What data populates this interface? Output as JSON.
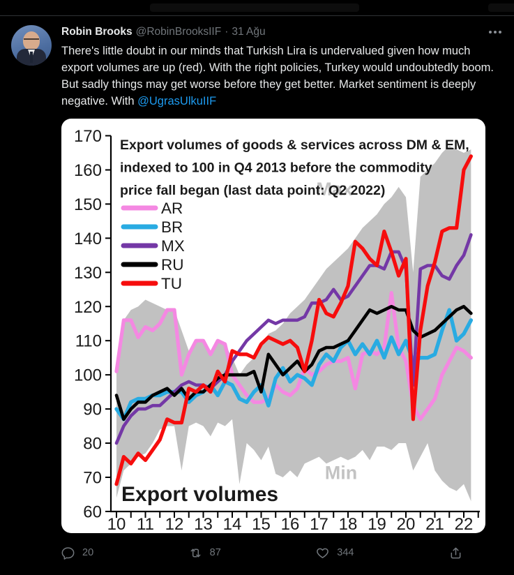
{
  "tweet": {
    "author": "Robin Brooks",
    "handle": "@RobinBrooksIIF",
    "separator": "·",
    "date": "31 Ağu",
    "text_before": "There's little doubt in our minds that Turkish Lira is undervalued given how much export volumes are up (red). With the right policies, Turkey would undoubtedly boom. But sadly things may get worse before they get better. Market sentiment is deeply negative. With ",
    "mention": "@UgrasUlkuIIF",
    "icons": {
      "more": "more-horizontal-dots",
      "reply": "reply-bubble",
      "retweet": "retweet-arrows",
      "like": "heart-outline",
      "share": "share-up-arrow"
    },
    "actions": {
      "reply_count": "20",
      "retweet_count": "87",
      "like_count": "344"
    }
  },
  "colors": {
    "background": "#000000",
    "text_primary": "#e7e9ea",
    "text_secondary": "#71767b",
    "link": "#1d9bf0",
    "divider": "#2f3336",
    "chart_bg": "#ffffff"
  },
  "chart_data": {
    "type": "line",
    "title": "Export volumes of goods & services across DM & EM, indexed to 100 in Q4 2013  before the commodity price fall began (last data point: Q2 2022)",
    "title_lines": [
      "Export volumes of goods & services across DM & EM,",
      "indexed to 100 in Q4 2013  before the commodity",
      "price fall began (last data point: Q2 2022)"
    ],
    "annotation": "Export volumes",
    "xlabel": "",
    "ylabel": "",
    "ylim": [
      60,
      170
    ],
    "yticks": [
      60,
      70,
      80,
      90,
      100,
      110,
      120,
      130,
      140,
      150,
      160,
      170
    ],
    "xtick_labels": [
      "10",
      "11",
      "12",
      "13",
      "14",
      "15",
      "16",
      "17",
      "18",
      "19",
      "20",
      "21",
      "22"
    ],
    "x_start": 2010.0,
    "x_step": 0.25,
    "legend_position": "upper-left",
    "grid": false,
    "band": {
      "name": "Max-Min range across DM & EM",
      "color": "#c1c1c1",
      "max": [
        101,
        116,
        119,
        120,
        122,
        121,
        120,
        119,
        119,
        113,
        107,
        110,
        110,
        106,
        110,
        109,
        105,
        100,
        103,
        105,
        108,
        112,
        113,
        115,
        118,
        120,
        122,
        125,
        128,
        131,
        133,
        135,
        137,
        140,
        143,
        145,
        147,
        150,
        152,
        155,
        152,
        130,
        158,
        160,
        162,
        165,
        167,
        166,
        165,
        166
      ],
      "min": [
        64,
        72,
        74,
        76,
        77,
        80,
        84,
        85,
        85,
        72,
        85,
        86,
        85,
        82,
        86,
        85,
        87,
        68,
        80,
        78,
        75,
        79,
        71,
        70,
        72,
        70,
        74,
        75,
        76,
        74,
        75,
        76,
        75,
        76,
        78,
        75,
        79,
        79,
        78,
        80,
        80,
        72,
        76,
        80,
        72,
        69,
        67,
        66,
        68,
        63
      ]
    },
    "band_labels": [
      {
        "text": "Max",
        "year": 2016.9,
        "value": 152.5
      },
      {
        "text": "Min",
        "year": 2017.2,
        "value": 69.5
      }
    ],
    "series": [
      {
        "name": "AR",
        "color": "#f488e2",
        "values": [
          101,
          116,
          116,
          111,
          114,
          113,
          115,
          119,
          119,
          100,
          106,
          110,
          110,
          106,
          110,
          109,
          100,
          97,
          94,
          92,
          92,
          93,
          97,
          95,
          94,
          96,
          102,
          100,
          101,
          103,
          104,
          104,
          105,
          96,
          106,
          107,
          106,
          108,
          124,
          108,
          104,
          91,
          87,
          90,
          93,
          100,
          104,
          108,
          107,
          105
        ]
      },
      {
        "name": "BR",
        "color": "#29abe2",
        "values": [
          90,
          87,
          92,
          93,
          93,
          94,
          94,
          95,
          95,
          95,
          92,
          94,
          95,
          97,
          94,
          98,
          97,
          93,
          92,
          95,
          97,
          91,
          99,
          102,
          98,
          100,
          99,
          97,
          103,
          106,
          104,
          108,
          110,
          106,
          109,
          106,
          110,
          105,
          111,
          106,
          110,
          104,
          105,
          105,
          106,
          113,
          119,
          110,
          112,
          116
        ]
      },
      {
        "name": "MX",
        "color": "#7438a6",
        "values": [
          80,
          85,
          88,
          90,
          90,
          91,
          91,
          93,
          95,
          97,
          98,
          97,
          97,
          96,
          98,
          100,
          104,
          107,
          110,
          112,
          114,
          116,
          115,
          116,
          116,
          116,
          117,
          121,
          121,
          122,
          125,
          122,
          123,
          126,
          129,
          132,
          132,
          131,
          136,
          136,
          131,
          97,
          131,
          132,
          132,
          129,
          128,
          132,
          135,
          141
        ]
      },
      {
        "name": "RU",
        "color": "#000000",
        "values": [
          94,
          87,
          90,
          92,
          92,
          94,
          95,
          96,
          94,
          96,
          93,
          95,
          95,
          97,
          99,
          100,
          100,
          100,
          100,
          101,
          95,
          106,
          103,
          100,
          102,
          104,
          101,
          103,
          107,
          108,
          108,
          109,
          110,
          113,
          116,
          119,
          118,
          119,
          120,
          119,
          119,
          113,
          111,
          112,
          113,
          115,
          117,
          119,
          120,
          118
        ]
      },
      {
        "name": "TU",
        "color": "#f60d0d",
        "values": [
          68,
          76,
          74,
          77,
          75,
          78,
          81,
          87,
          86,
          86,
          96,
          95,
          97,
          95,
          101,
          98,
          107,
          106,
          106,
          105,
          109,
          111,
          110,
          109,
          110,
          108,
          101,
          110,
          122,
          118,
          117,
          121,
          126,
          139,
          137,
          134,
          132,
          142,
          136,
          129,
          134,
          87,
          113,
          126,
          133,
          142,
          143,
          143,
          160,
          164
        ]
      }
    ]
  }
}
